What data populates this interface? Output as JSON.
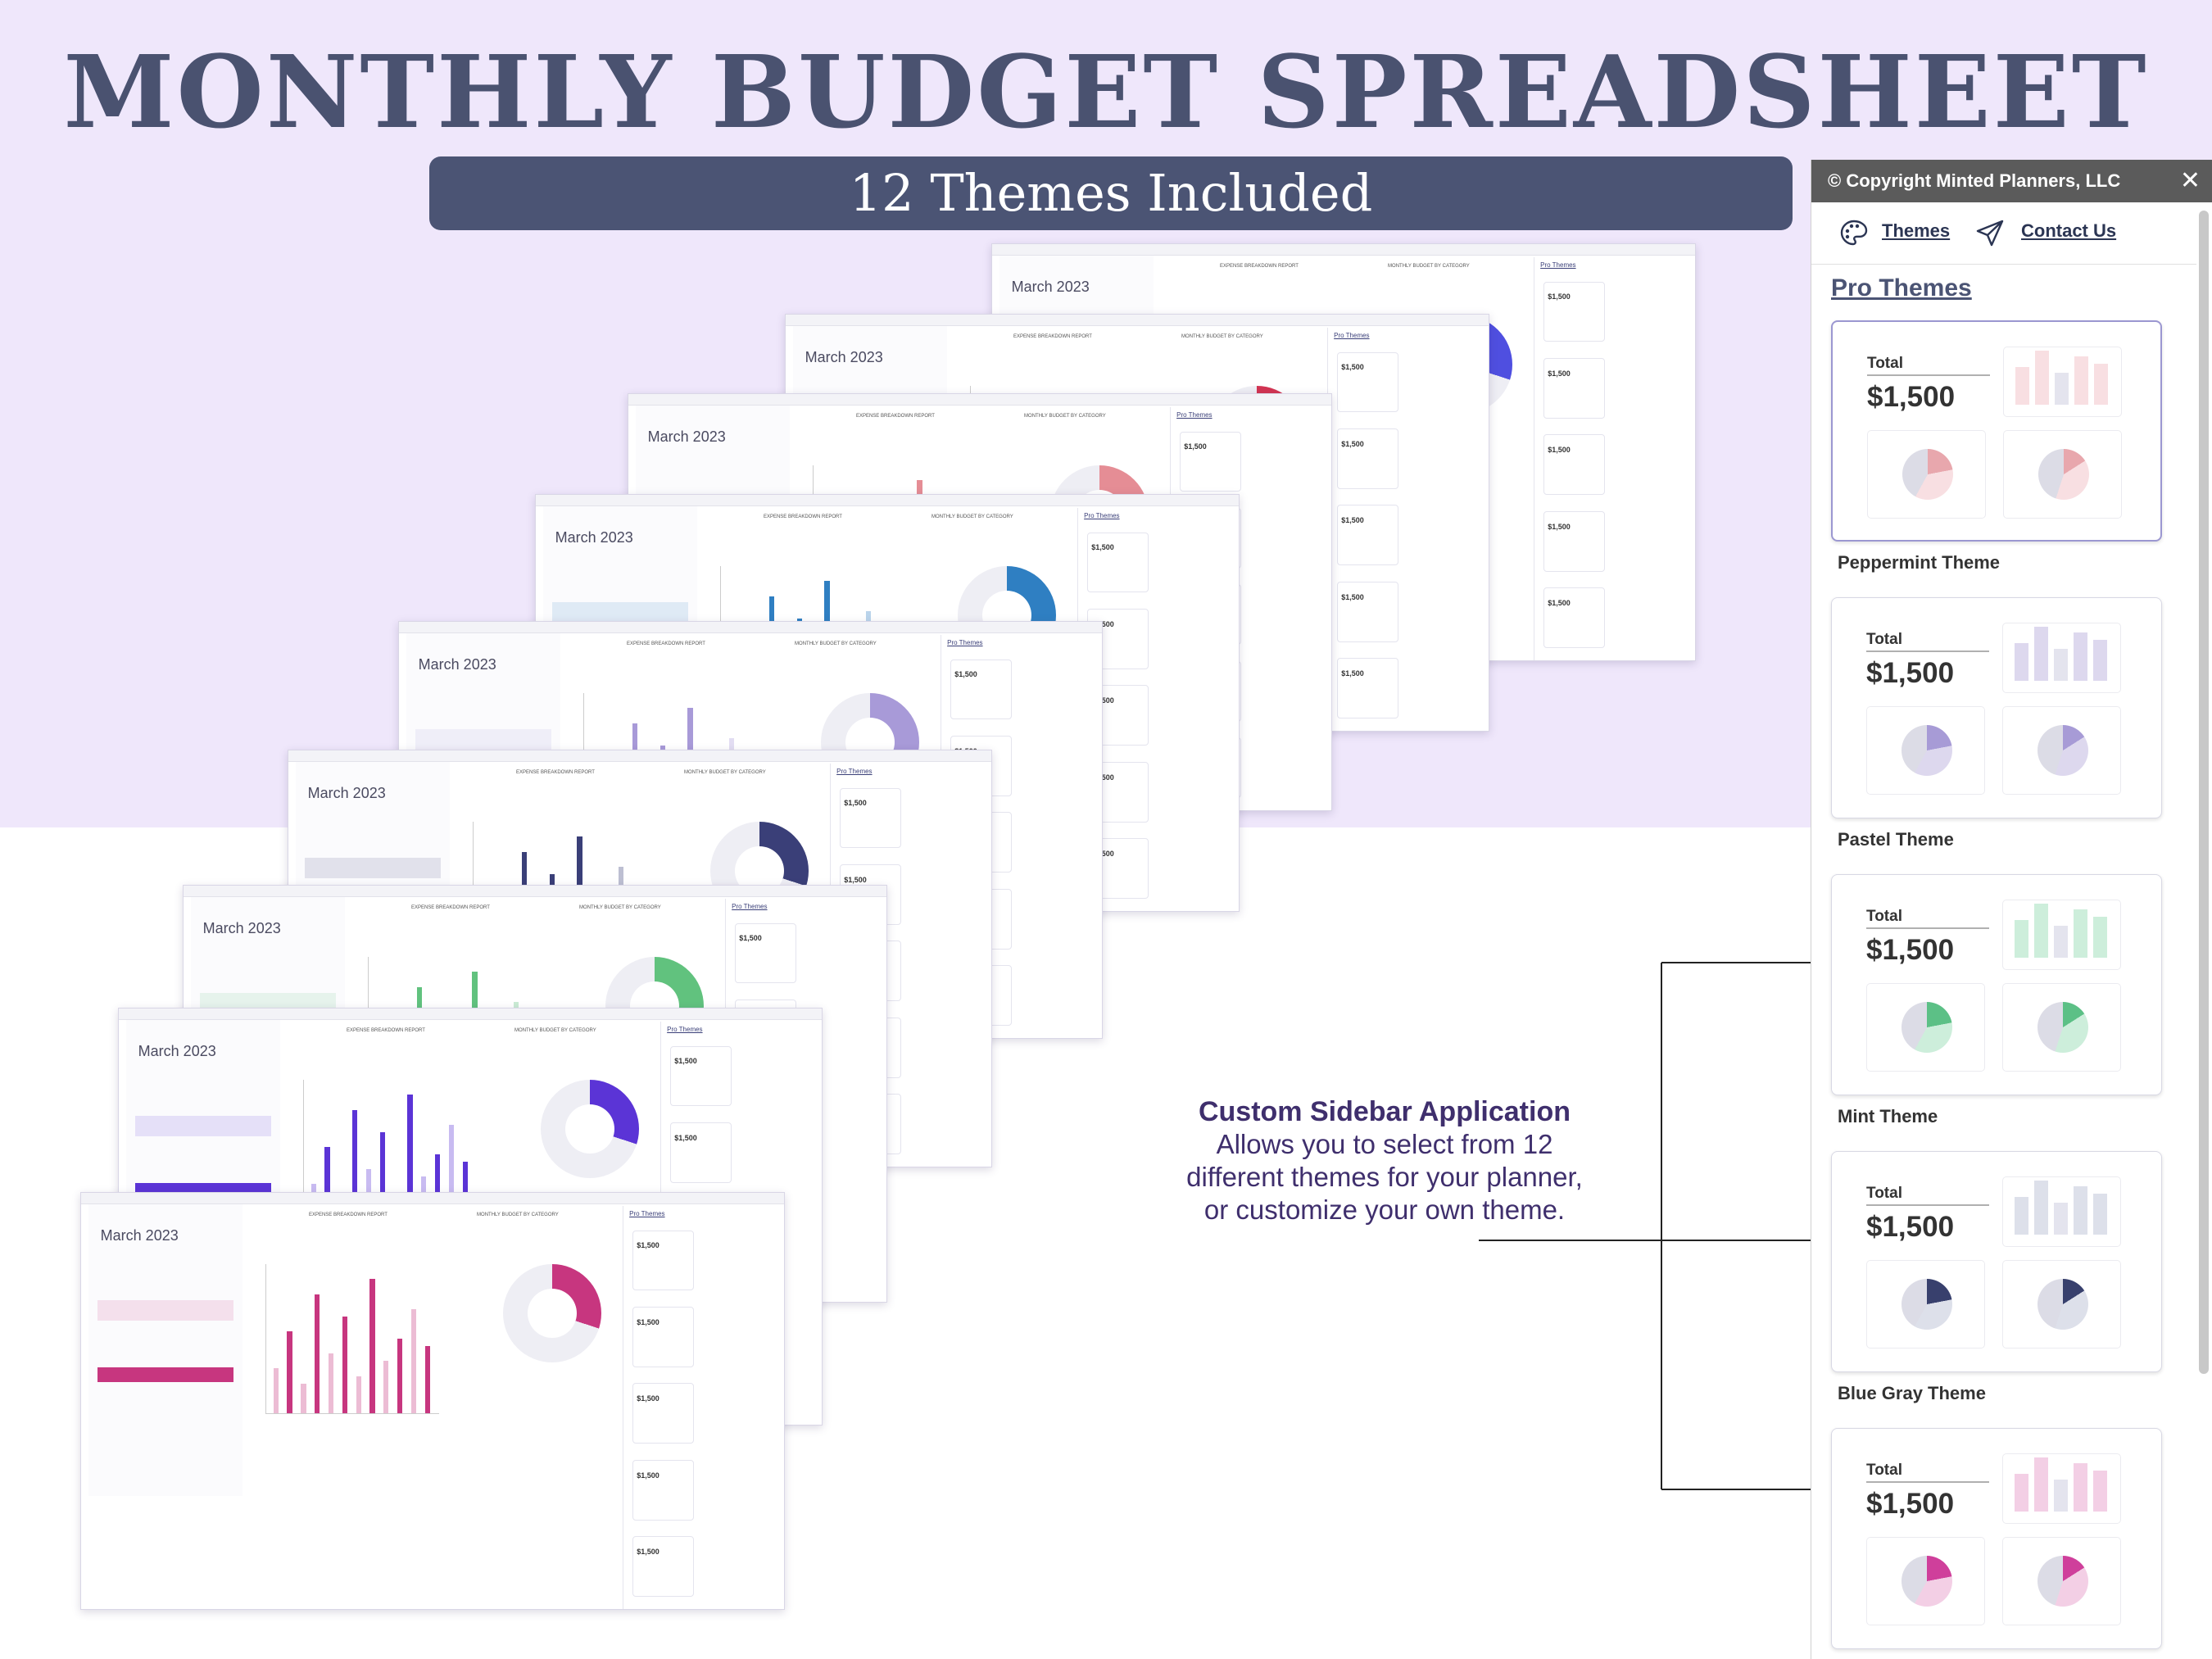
{
  "title": "MONTHLY BUDGET SPREADSHEET",
  "subtitle": "12 Themes Included",
  "sheet_preview": {
    "month_title": "March 2023",
    "chart_title": "EXPENSE BREAKDOWN REPORT",
    "category_title": "MONTHLY BUDGET BY CATEGORY",
    "card_heading": "Pro Themes",
    "card_amount": "$1,500"
  },
  "sidebar": {
    "copyright": "© Copyright Minted Planners, LLC",
    "close_icon": "close-icon",
    "nav": [
      {
        "label": "Themes",
        "icon": "palette-icon"
      },
      {
        "label": "Contact Us",
        "icon": "send-icon"
      }
    ],
    "heading": "Pro Themes",
    "themes": [
      {
        "name": "Peppermint Theme",
        "total_label": "Total",
        "amount": "$1,500",
        "accent": "#e8a7ad",
        "light": "#f8dfe2",
        "selected": true
      },
      {
        "name": "Pastel Theme",
        "total_label": "Total",
        "amount": "$1,500",
        "accent": "#a79bd6",
        "light": "#ddd8ee",
        "selected": false
      },
      {
        "name": "Mint Theme",
        "total_label": "Total",
        "amount": "$1,500",
        "accent": "#5cc086",
        "light": "#cdeedb",
        "selected": false
      },
      {
        "name": "Blue Gray Theme",
        "total_label": "Total",
        "amount": "$1,500",
        "accent": "#38406d",
        "light": "#dde0ea",
        "selected": false
      },
      {
        "name": "",
        "total_label": "Total",
        "amount": "$1,500",
        "accent": "#cf3f9b",
        "light": "#f3cfe5",
        "selected": false
      }
    ]
  },
  "callout": {
    "title": "Custom Sidebar Application",
    "body": "Allows you to select from 12 different themes for your planner, or customize your own theme."
  }
}
